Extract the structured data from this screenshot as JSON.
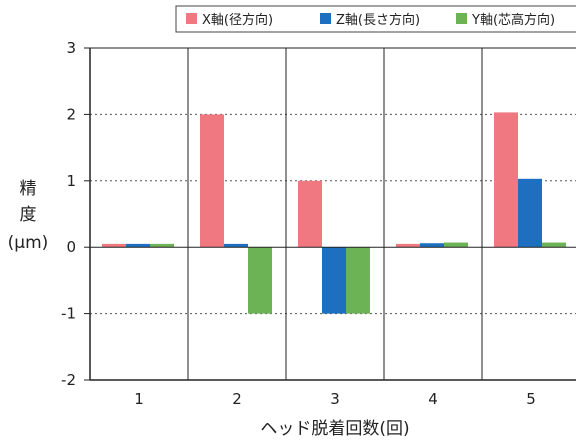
{
  "chart_data": {
    "type": "bar",
    "title": "",
    "xlabel": "ヘッド脱着回数(回)",
    "ylabel_lines": [
      "精",
      "度",
      "(μm)"
    ],
    "categories": [
      "1",
      "2",
      "3",
      "4",
      "5"
    ],
    "series": [
      {
        "name": "X軸(径方向)",
        "values": [
          0.05,
          2.0,
          1.0,
          0.05,
          2.03
        ],
        "color": "#f07880"
      },
      {
        "name": "Z軸(長さ方向)",
        "values": [
          0.05,
          0.05,
          -1.0,
          0.06,
          1.03
        ],
        "color": "#1f6fc0"
      },
      {
        "name": "Y軸(芯高方向)",
        "values": [
          0.05,
          -1.0,
          -1.0,
          0.07,
          0.07
        ],
        "color": "#6cb356"
      }
    ],
    "ylim": [
      -2,
      3
    ],
    "yticks": [
      "3",
      "2",
      "1",
      "0",
      "-1",
      "-2"
    ],
    "gridlines": "dotted horizontal",
    "legend_position": "top"
  }
}
